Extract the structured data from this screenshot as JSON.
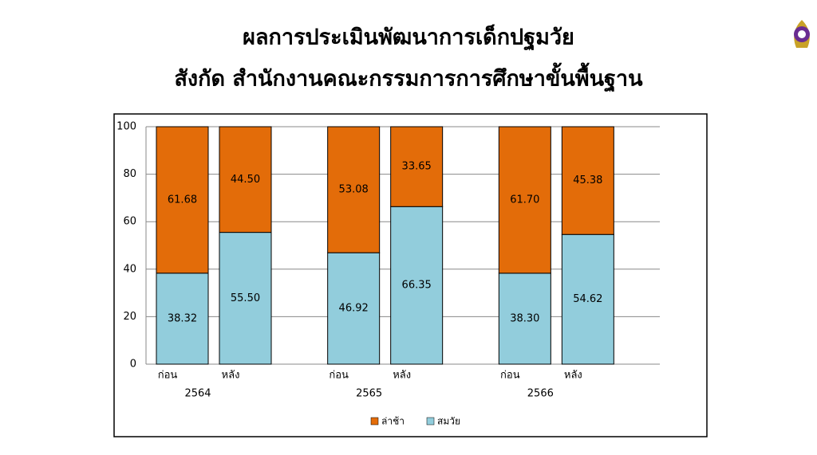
{
  "chart_data": {
    "type": "stacked-bar",
    "title": "ผลการประเมินพัฒนาการเด็กปฐมวัย",
    "subtitle": "สังกัด สำนักงานคณะกรรมการการศึกษาขั้นพื้นฐาน",
    "categories": [
      "ก่อน",
      "หลัง",
      "ก่อน",
      "หลัง",
      "ก่อน",
      "หลัง"
    ],
    "groups": [
      "2564",
      "2565",
      "2566"
    ],
    "series": [
      {
        "name": "สมวัย",
        "color": "#92cddc",
        "values": [
          38.32,
          55.5,
          46.92,
          66.35,
          38.3,
          54.62
        ],
        "value_labels": [
          "38.32",
          "55.50",
          "46.92",
          "66.35",
          "38.30",
          "54.62"
        ]
      },
      {
        "name": "ล่าช้า",
        "color": "#e36c09",
        "values": [
          61.68,
          44.5,
          53.08,
          33.65,
          61.7,
          45.38
        ],
        "value_labels": [
          "61.68",
          "44.50",
          "53.08",
          "33.65",
          "61.70",
          "45.38"
        ]
      }
    ],
    "ylim": [
      0,
      100
    ],
    "yticks": [
      0,
      20,
      40,
      60,
      80,
      100
    ],
    "grid": true,
    "legend": "bottom"
  }
}
